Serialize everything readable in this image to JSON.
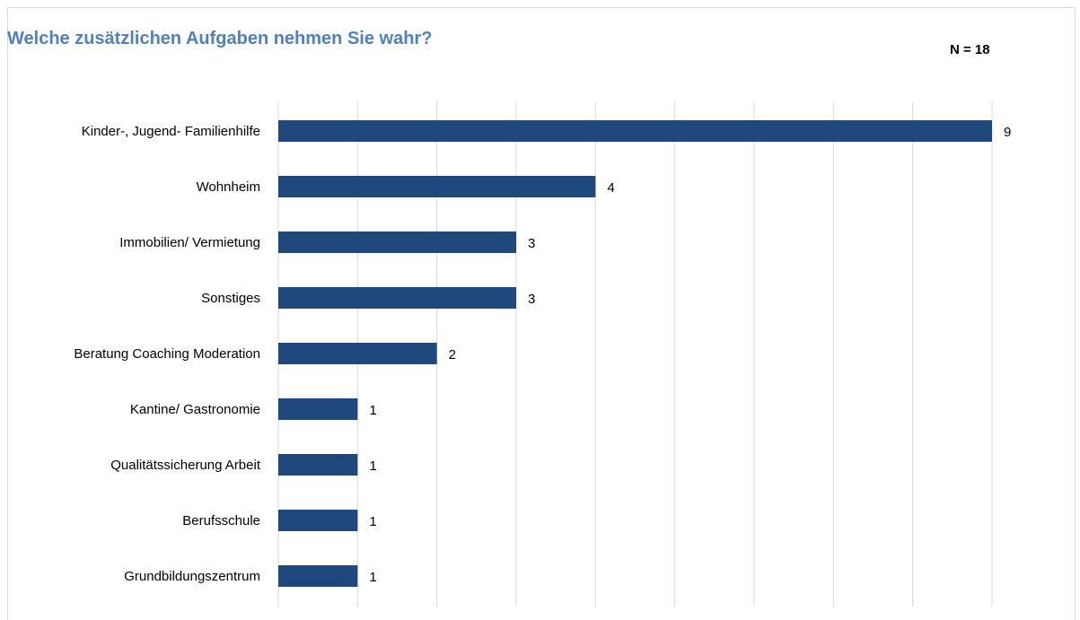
{
  "title": "Welche zusätzlichen Aufgaben nehmen Sie wahr?",
  "n_label": "N = 18",
  "colors": {
    "bar": "#1f497d",
    "grid": "#d9d9d9",
    "title": "#4f81bd"
  },
  "chart_data": {
    "type": "bar",
    "orientation": "horizontal",
    "title": "Welche zusätzlichen Aufgaben nehmen Sie wahr?",
    "annotation": "N = 18",
    "categories": [
      "Kinder-, Jugend- Familienhilfe",
      "Wohnheim",
      "Immobilien/ Vermietung",
      "Sonstiges",
      "Beratung Coaching Moderation",
      "Kantine/ Gastronomie",
      "Qualitätssicherung Arbeit",
      "Berufsschule",
      "Grundbildungszentrum"
    ],
    "values": [
      9,
      4,
      3,
      3,
      2,
      1,
      1,
      1,
      1
    ],
    "xlim": [
      0,
      9
    ],
    "grid": true,
    "gridlines_vertical": true,
    "data_labels": true,
    "legend": "none"
  }
}
